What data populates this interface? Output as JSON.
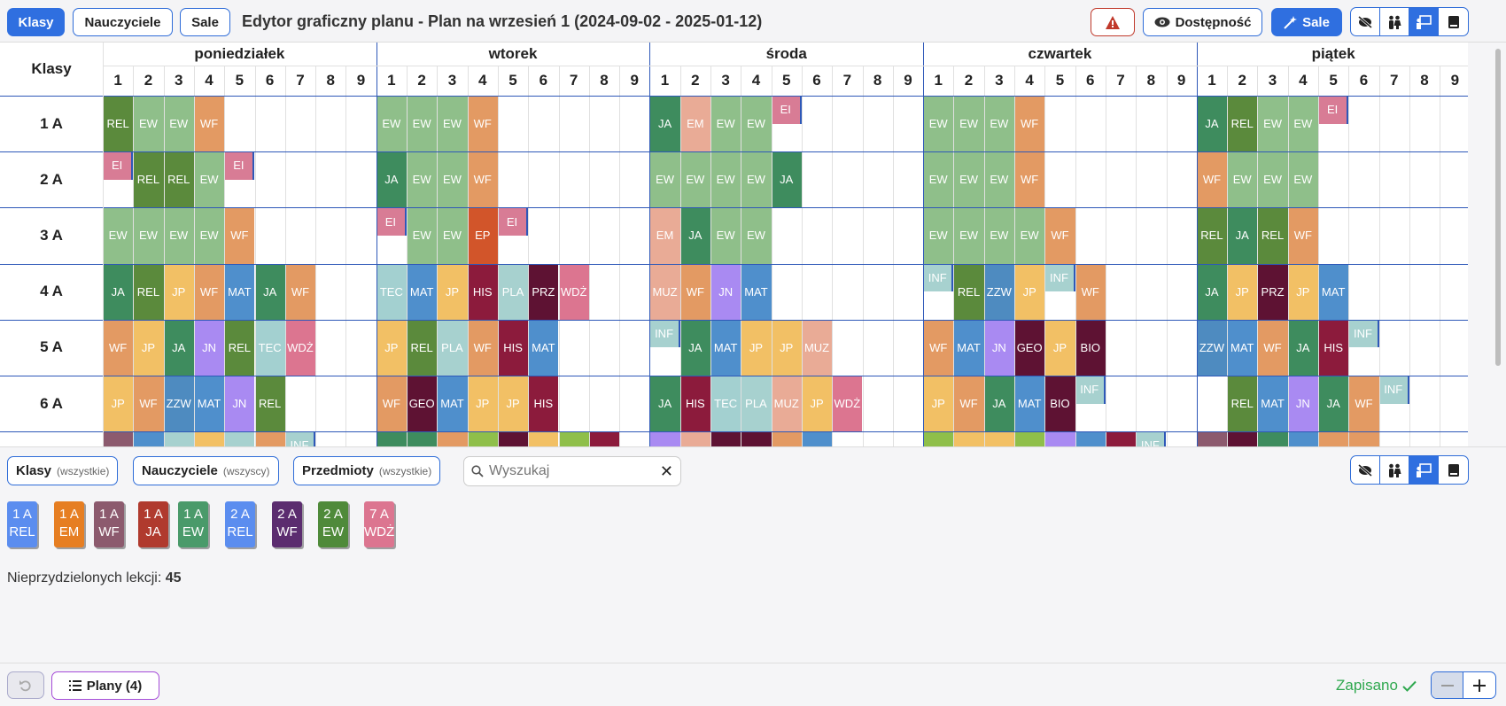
{
  "toolbar": {
    "tab_classes": "Klasy",
    "tab_teachers": "Nauczyciele",
    "tab_rooms": "Sale",
    "title": "Edytor graficzny planu - Plan na wrzesień 1 (2024-09-02 - 2025-01-12)",
    "availability": "Dostępność",
    "rooms_button": "Sale"
  },
  "grid": {
    "corner": "Klasy",
    "days": [
      "poniedziałek",
      "wtorek",
      "środa",
      "czwartek",
      "piątek"
    ],
    "periods": [
      "1",
      "2",
      "3",
      "4",
      "5",
      "6",
      "7",
      "8",
      "9"
    ],
    "rows": [
      "1 A",
      "2 A",
      "3 A",
      "4 A",
      "5 A",
      "6 A"
    ]
  },
  "colors": {
    "REL": "#5b8a3c",
    "EW": "#8fbf8a",
    "WF": "#e39a63",
    "JA": "#3e8c5e",
    "EI": "#d87c95",
    "EM": "#e9ab96",
    "EP": "#d2552a",
    "JP": "#f2c065",
    "MAT": "#4f8fcc",
    "TEC": "#a3d0d0",
    "WDŻ": "#dc7590",
    "HIS": "#8c1b3c",
    "PLA": "#a7d1cf",
    "PRZ": "#5e1233",
    "MUZ": "#e9ab96",
    "JN": "#a98af2",
    "INF": "#a7d1cf",
    "ZZW": "#4e8bc0",
    "GEO": "#5e1233",
    "BIO": "#5e1233"
  },
  "lessons": [
    {
      "r": 0,
      "d": 0,
      "p": 1,
      "s": "REL"
    },
    {
      "r": 0,
      "d": 0,
      "p": 2,
      "s": "EW"
    },
    {
      "r": 0,
      "d": 0,
      "p": 3,
      "s": "EW"
    },
    {
      "r": 0,
      "d": 0,
      "p": 4,
      "s": "WF"
    },
    {
      "r": 0,
      "d": 1,
      "p": 1,
      "s": "EW"
    },
    {
      "r": 0,
      "d": 1,
      "p": 2,
      "s": "EW"
    },
    {
      "r": 0,
      "d": 1,
      "p": 3,
      "s": "EW"
    },
    {
      "r": 0,
      "d": 1,
      "p": 4,
      "s": "WF"
    },
    {
      "r": 0,
      "d": 2,
      "p": 1,
      "s": "JA"
    },
    {
      "r": 0,
      "d": 2,
      "p": 2,
      "s": "EM"
    },
    {
      "r": 0,
      "d": 2,
      "p": 3,
      "s": "EW"
    },
    {
      "r": 0,
      "d": 2,
      "p": 4,
      "s": "EW"
    },
    {
      "r": 0,
      "d": 2,
      "p": 5,
      "s": "EI",
      "h": 1
    },
    {
      "r": 0,
      "d": 3,
      "p": 1,
      "s": "EW"
    },
    {
      "r": 0,
      "d": 3,
      "p": 2,
      "s": "EW"
    },
    {
      "r": 0,
      "d": 3,
      "p": 3,
      "s": "EW"
    },
    {
      "r": 0,
      "d": 3,
      "p": 4,
      "s": "WF"
    },
    {
      "r": 0,
      "d": 4,
      "p": 1,
      "s": "JA"
    },
    {
      "r": 0,
      "d": 4,
      "p": 2,
      "s": "REL"
    },
    {
      "r": 0,
      "d": 4,
      "p": 3,
      "s": "EW"
    },
    {
      "r": 0,
      "d": 4,
      "p": 4,
      "s": "EW"
    },
    {
      "r": 0,
      "d": 4,
      "p": 5,
      "s": "EI",
      "h": 1
    },
    {
      "r": 1,
      "d": 0,
      "p": 1,
      "s": "EI",
      "h": 1
    },
    {
      "r": 1,
      "d": 0,
      "p": 2,
      "s": "REL"
    },
    {
      "r": 1,
      "d": 0,
      "p": 3,
      "s": "REL"
    },
    {
      "r": 1,
      "d": 0,
      "p": 4,
      "s": "EW"
    },
    {
      "r": 1,
      "d": 0,
      "p": 5,
      "s": "EI",
      "h": 1
    },
    {
      "r": 1,
      "d": 1,
      "p": 1,
      "s": "JA"
    },
    {
      "r": 1,
      "d": 1,
      "p": 2,
      "s": "EW"
    },
    {
      "r": 1,
      "d": 1,
      "p": 3,
      "s": "EW"
    },
    {
      "r": 1,
      "d": 1,
      "p": 4,
      "s": "WF"
    },
    {
      "r": 1,
      "d": 2,
      "p": 1,
      "s": "EW"
    },
    {
      "r": 1,
      "d": 2,
      "p": 2,
      "s": "EW"
    },
    {
      "r": 1,
      "d": 2,
      "p": 3,
      "s": "EW"
    },
    {
      "r": 1,
      "d": 2,
      "p": 4,
      "s": "EW"
    },
    {
      "r": 1,
      "d": 2,
      "p": 5,
      "s": "JA"
    },
    {
      "r": 1,
      "d": 3,
      "p": 1,
      "s": "EW"
    },
    {
      "r": 1,
      "d": 3,
      "p": 2,
      "s": "EW"
    },
    {
      "r": 1,
      "d": 3,
      "p": 3,
      "s": "EW"
    },
    {
      "r": 1,
      "d": 3,
      "p": 4,
      "s": "WF"
    },
    {
      "r": 1,
      "d": 4,
      "p": 1,
      "s": "WF"
    },
    {
      "r": 1,
      "d": 4,
      "p": 2,
      "s": "EW"
    },
    {
      "r": 1,
      "d": 4,
      "p": 3,
      "s": "EW"
    },
    {
      "r": 1,
      "d": 4,
      "p": 4,
      "s": "EW"
    },
    {
      "r": 2,
      "d": 0,
      "p": 1,
      "s": "EW"
    },
    {
      "r": 2,
      "d": 0,
      "p": 2,
      "s": "EW"
    },
    {
      "r": 2,
      "d": 0,
      "p": 3,
      "s": "EW"
    },
    {
      "r": 2,
      "d": 0,
      "p": 4,
      "s": "EW"
    },
    {
      "r": 2,
      "d": 0,
      "p": 5,
      "s": "WF"
    },
    {
      "r": 2,
      "d": 1,
      "p": 1,
      "s": "EI",
      "h": 1
    },
    {
      "r": 2,
      "d": 1,
      "p": 2,
      "s": "EW"
    },
    {
      "r": 2,
      "d": 1,
      "p": 3,
      "s": "EW"
    },
    {
      "r": 2,
      "d": 1,
      "p": 4,
      "s": "EP"
    },
    {
      "r": 2,
      "d": 1,
      "p": 5,
      "s": "EI",
      "h": 1
    },
    {
      "r": 2,
      "d": 2,
      "p": 1,
      "s": "EM"
    },
    {
      "r": 2,
      "d": 2,
      "p": 2,
      "s": "JA"
    },
    {
      "r": 2,
      "d": 2,
      "p": 3,
      "s": "EW"
    },
    {
      "r": 2,
      "d": 2,
      "p": 4,
      "s": "EW"
    },
    {
      "r": 2,
      "d": 3,
      "p": 1,
      "s": "EW"
    },
    {
      "r": 2,
      "d": 3,
      "p": 2,
      "s": "EW"
    },
    {
      "r": 2,
      "d": 3,
      "p": 3,
      "s": "EW"
    },
    {
      "r": 2,
      "d": 3,
      "p": 4,
      "s": "EW"
    },
    {
      "r": 2,
      "d": 3,
      "p": 5,
      "s": "WF"
    },
    {
      "r": 2,
      "d": 4,
      "p": 1,
      "s": "REL"
    },
    {
      "r": 2,
      "d": 4,
      "p": 2,
      "s": "JA"
    },
    {
      "r": 2,
      "d": 4,
      "p": 3,
      "s": "REL"
    },
    {
      "r": 2,
      "d": 4,
      "p": 4,
      "s": "WF"
    },
    {
      "r": 3,
      "d": 0,
      "p": 1,
      "s": "JA"
    },
    {
      "r": 3,
      "d": 0,
      "p": 2,
      "s": "REL"
    },
    {
      "r": 3,
      "d": 0,
      "p": 3,
      "s": "JP"
    },
    {
      "r": 3,
      "d": 0,
      "p": 4,
      "s": "WF"
    },
    {
      "r": 3,
      "d": 0,
      "p": 5,
      "s": "MAT"
    },
    {
      "r": 3,
      "d": 0,
      "p": 6,
      "s": "JA"
    },
    {
      "r": 3,
      "d": 0,
      "p": 7,
      "s": "WF"
    },
    {
      "r": 3,
      "d": 1,
      "p": 1,
      "s": "TEC"
    },
    {
      "r": 3,
      "d": 1,
      "p": 2,
      "s": "MAT"
    },
    {
      "r": 3,
      "d": 1,
      "p": 3,
      "s": "JP"
    },
    {
      "r": 3,
      "d": 1,
      "p": 4,
      "s": "HIS"
    },
    {
      "r": 3,
      "d": 1,
      "p": 5,
      "s": "PLA"
    },
    {
      "r": 3,
      "d": 1,
      "p": 6,
      "s": "PRZ"
    },
    {
      "r": 3,
      "d": 1,
      "p": 7,
      "s": "WDŻ"
    },
    {
      "r": 3,
      "d": 2,
      "p": 1,
      "s": "MUZ"
    },
    {
      "r": 3,
      "d": 2,
      "p": 2,
      "s": "WF"
    },
    {
      "r": 3,
      "d": 2,
      "p": 3,
      "s": "JN"
    },
    {
      "r": 3,
      "d": 2,
      "p": 4,
      "s": "MAT"
    },
    {
      "r": 3,
      "d": 3,
      "p": 1,
      "s": "INF",
      "h": 1
    },
    {
      "r": 3,
      "d": 3,
      "p": 2,
      "s": "REL"
    },
    {
      "r": 3,
      "d": 3,
      "p": 3,
      "s": "ZZW"
    },
    {
      "r": 3,
      "d": 3,
      "p": 4,
      "s": "JP"
    },
    {
      "r": 3,
      "d": 3,
      "p": 5,
      "s": "INF",
      "h": 1
    },
    {
      "r": 3,
      "d": 3,
      "p": 6,
      "s": "WF"
    },
    {
      "r": 3,
      "d": 4,
      "p": 1,
      "s": "JA"
    },
    {
      "r": 3,
      "d": 4,
      "p": 2,
      "s": "JP"
    },
    {
      "r": 3,
      "d": 4,
      "p": 3,
      "s": "PRZ"
    },
    {
      "r": 3,
      "d": 4,
      "p": 4,
      "s": "JP"
    },
    {
      "r": 3,
      "d": 4,
      "p": 5,
      "s": "MAT"
    },
    {
      "r": 4,
      "d": 0,
      "p": 1,
      "s": "WF"
    },
    {
      "r": 4,
      "d": 0,
      "p": 2,
      "s": "JP"
    },
    {
      "r": 4,
      "d": 0,
      "p": 3,
      "s": "JA"
    },
    {
      "r": 4,
      "d": 0,
      "p": 4,
      "s": "JN"
    },
    {
      "r": 4,
      "d": 0,
      "p": 5,
      "s": "REL"
    },
    {
      "r": 4,
      "d": 0,
      "p": 6,
      "s": "TEC"
    },
    {
      "r": 4,
      "d": 0,
      "p": 7,
      "s": "WDŻ"
    },
    {
      "r": 4,
      "d": 1,
      "p": 1,
      "s": "JP"
    },
    {
      "r": 4,
      "d": 1,
      "p": 2,
      "s": "REL"
    },
    {
      "r": 4,
      "d": 1,
      "p": 3,
      "s": "PLA"
    },
    {
      "r": 4,
      "d": 1,
      "p": 4,
      "s": "WF"
    },
    {
      "r": 4,
      "d": 1,
      "p": 5,
      "s": "HIS"
    },
    {
      "r": 4,
      "d": 1,
      "p": 6,
      "s": "MAT"
    },
    {
      "r": 4,
      "d": 2,
      "p": 1,
      "s": "INF",
      "h": 1
    },
    {
      "r": 4,
      "d": 2,
      "p": 2,
      "s": "JA"
    },
    {
      "r": 4,
      "d": 2,
      "p": 3,
      "s": "MAT"
    },
    {
      "r": 4,
      "d": 2,
      "p": 4,
      "s": "JP"
    },
    {
      "r": 4,
      "d": 2,
      "p": 5,
      "s": "JP"
    },
    {
      "r": 4,
      "d": 2,
      "p": 6,
      "s": "MUZ"
    },
    {
      "r": 4,
      "d": 3,
      "p": 1,
      "s": "WF"
    },
    {
      "r": 4,
      "d": 3,
      "p": 2,
      "s": "MAT"
    },
    {
      "r": 4,
      "d": 3,
      "p": 3,
      "s": "JN"
    },
    {
      "r": 4,
      "d": 3,
      "p": 4,
      "s": "GEO"
    },
    {
      "r": 4,
      "d": 3,
      "p": 5,
      "s": "JP"
    },
    {
      "r": 4,
      "d": 3,
      "p": 6,
      "s": "BIO"
    },
    {
      "r": 4,
      "d": 4,
      "p": 1,
      "s": "ZZW"
    },
    {
      "r": 4,
      "d": 4,
      "p": 2,
      "s": "MAT"
    },
    {
      "r": 4,
      "d": 4,
      "p": 3,
      "s": "WF"
    },
    {
      "r": 4,
      "d": 4,
      "p": 4,
      "s": "JA"
    },
    {
      "r": 4,
      "d": 4,
      "p": 5,
      "s": "HIS"
    },
    {
      "r": 4,
      "d": 4,
      "p": 6,
      "s": "INF",
      "h": 1
    },
    {
      "r": 5,
      "d": 0,
      "p": 1,
      "s": "JP"
    },
    {
      "r": 5,
      "d": 0,
      "p": 2,
      "s": "WF"
    },
    {
      "r": 5,
      "d": 0,
      "p": 3,
      "s": "ZZW"
    },
    {
      "r": 5,
      "d": 0,
      "p": 4,
      "s": "MAT"
    },
    {
      "r": 5,
      "d": 0,
      "p": 5,
      "s": "JN"
    },
    {
      "r": 5,
      "d": 0,
      "p": 6,
      "s": "REL"
    },
    {
      "r": 5,
      "d": 1,
      "p": 1,
      "s": "WF"
    },
    {
      "r": 5,
      "d": 1,
      "p": 2,
      "s": "GEO"
    },
    {
      "r": 5,
      "d": 1,
      "p": 3,
      "s": "MAT"
    },
    {
      "r": 5,
      "d": 1,
      "p": 4,
      "s": "JP"
    },
    {
      "r": 5,
      "d": 1,
      "p": 5,
      "s": "JP"
    },
    {
      "r": 5,
      "d": 1,
      "p": 6,
      "s": "HIS"
    },
    {
      "r": 5,
      "d": 2,
      "p": 1,
      "s": "JA"
    },
    {
      "r": 5,
      "d": 2,
      "p": 2,
      "s": "HIS"
    },
    {
      "r": 5,
      "d": 2,
      "p": 3,
      "s": "TEC"
    },
    {
      "r": 5,
      "d": 2,
      "p": 4,
      "s": "PLA"
    },
    {
      "r": 5,
      "d": 2,
      "p": 5,
      "s": "MUZ"
    },
    {
      "r": 5,
      "d": 2,
      "p": 6,
      "s": "JP"
    },
    {
      "r": 5,
      "d": 2,
      "p": 7,
      "s": "WDŻ"
    },
    {
      "r": 5,
      "d": 3,
      "p": 1,
      "s": "JP"
    },
    {
      "r": 5,
      "d": 3,
      "p": 2,
      "s": "WF"
    },
    {
      "r": 5,
      "d": 3,
      "p": 3,
      "s": "JA"
    },
    {
      "r": 5,
      "d": 3,
      "p": 4,
      "s": "MAT"
    },
    {
      "r": 5,
      "d": 3,
      "p": 5,
      "s": "BIO"
    },
    {
      "r": 5,
      "d": 3,
      "p": 6,
      "s": "INF",
      "h": 1
    },
    {
      "r": 5,
      "d": 4,
      "p": 2,
      "s": "REL"
    },
    {
      "r": 5,
      "d": 4,
      "p": 3,
      "s": "MAT"
    },
    {
      "r": 5,
      "d": 4,
      "p": 4,
      "s": "JN"
    },
    {
      "r": 5,
      "d": 4,
      "p": 5,
      "s": "JA"
    },
    {
      "r": 5,
      "d": 4,
      "p": 6,
      "s": "WF"
    },
    {
      "r": 5,
      "d": 4,
      "p": 7,
      "s": "INF",
      "h": 1
    },
    {
      "r": 6,
      "d": 0,
      "p": 7,
      "s": "INF",
      "h": 1
    },
    {
      "r": 6,
      "d": 3,
      "p": 8,
      "s": "INF",
      "h": 1
    }
  ],
  "partial_row_colors": {
    "0": [
      "#8c5a6e",
      "#4f8fcc",
      "#a7d1cf",
      "#f2c065",
      "#a7d1cf",
      "#e39a63"
    ],
    "1": [
      "#3e8c5e",
      "#3e8c5e",
      "#e39a63",
      "#8fbf4a",
      "#5e1233",
      "#f2c065",
      "#8fbf4a",
      "#8c1b3c"
    ],
    "2": [
      "#a98af2",
      "#e9ab96",
      "#5e1233",
      "#5e1233",
      "#e39a63",
      "#4f8fcc"
    ],
    "3": [
      "#8fbf4a",
      "#f2c065",
      "#f2c065",
      "#8fbf4a",
      "#a98af2",
      "#4f8fcc",
      "#8c1b3c"
    ],
    "4": [
      "#8c5a6e",
      "#5e1233",
      "#3e8c5e",
      "#4f8fcc",
      "#e39a63",
      "#e39a63"
    ]
  },
  "filters": {
    "classes": "Klasy",
    "classes_sub": "(wszystkie)",
    "teachers": "Nauczyciele",
    "teachers_sub": "(wszyscy)",
    "subjects": "Przedmioty",
    "subjects_sub": "(wszystkie)",
    "search_placeholder": "Wyszukaj"
  },
  "cards": [
    {
      "c": "1 A",
      "s": "REL",
      "color": "#5b8def"
    },
    {
      "c": "1 A",
      "s": "EM",
      "color": "#e67e22"
    },
    {
      "c": "1 A",
      "s": "WF",
      "color": "#8c5a6e"
    },
    {
      "c": "1 A",
      "s": "JA",
      "color": "#b03a2e"
    },
    {
      "c": "1 A",
      "s": "EW",
      "color": "#4a9a6a"
    },
    {
      "c": "2 A",
      "s": "REL",
      "color": "#5b8def"
    },
    {
      "c": "2 A",
      "s": "WF",
      "color": "#5b2c6f"
    },
    {
      "c": "2 A",
      "s": "EW",
      "color": "#4f8a3a"
    },
    {
      "c": "7 A",
      "s": "WDŻ",
      "color": "#dc7590"
    }
  ],
  "unassigned": {
    "label": "Nieprzydzielonych lekcji:",
    "count": "45"
  },
  "bottom": {
    "plans": "Plany (4)",
    "saved": "Zapisano"
  }
}
